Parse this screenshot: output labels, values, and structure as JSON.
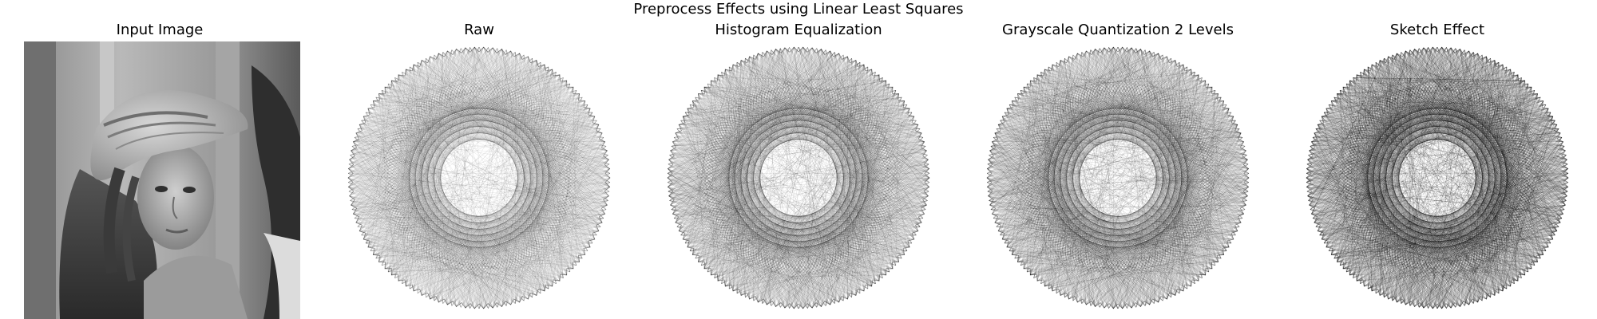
{
  "figure": {
    "title": "Preprocess Effects using Linear Least Squares",
    "panels": [
      {
        "title": "Input Image",
        "kind": "photo"
      },
      {
        "title": "Raw",
        "kind": "string-art"
      },
      {
        "title": "Histogram Equalization",
        "kind": "string-art"
      },
      {
        "title": "Grayscale Quantization 2 Levels",
        "kind": "string-art"
      },
      {
        "title": "Sketch Effect",
        "kind": "string-art"
      }
    ]
  },
  "colors": {
    "background": "#ffffff",
    "thread": "#000000",
    "text": "#000000"
  }
}
